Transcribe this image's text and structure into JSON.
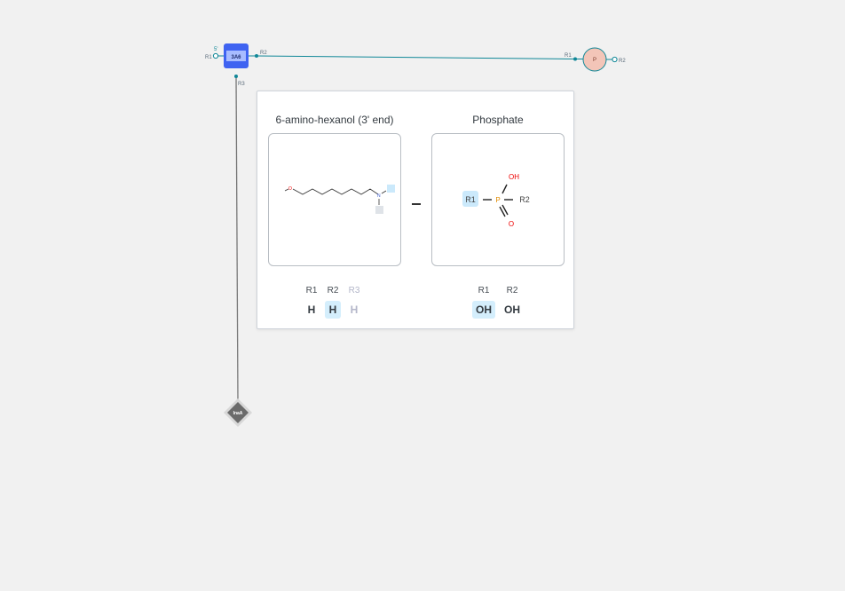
{
  "sequence": {
    "five_prime": "5'",
    "attach": {
      "r1": "R1",
      "r2": "R2",
      "r3": "R3"
    },
    "sugar_node": {
      "label": "3A6",
      "color": "#3f63f1"
    },
    "phosphate_node": {
      "label": "P",
      "color": "#f3c5b8",
      "r1": "R1",
      "r2": "R2"
    },
    "base_node": {
      "label": "InaA",
      "color": "#6b6b6b"
    },
    "bond_color": "#0f8797"
  },
  "popover": {
    "monomers": [
      {
        "name": "6-amino-hexanol (3' end)",
        "atoms": {
          "o": "O",
          "n": "N"
        },
        "rgroups": [
          {
            "label": "R1",
            "value": "H",
            "state": "normal"
          },
          {
            "label": "R2",
            "value": "H",
            "state": "selected"
          },
          {
            "label": "R3",
            "value": "H",
            "state": "disabled"
          }
        ]
      },
      {
        "name": "Phosphate",
        "atoms": {
          "r1": "R1",
          "p": "P",
          "r2": "R2",
          "oh": "OH",
          "o": "O"
        },
        "rgroups": [
          {
            "label": "R1",
            "value": "OH",
            "state": "selected"
          },
          {
            "label": "R2",
            "value": "OH",
            "state": "normal"
          }
        ]
      }
    ]
  }
}
